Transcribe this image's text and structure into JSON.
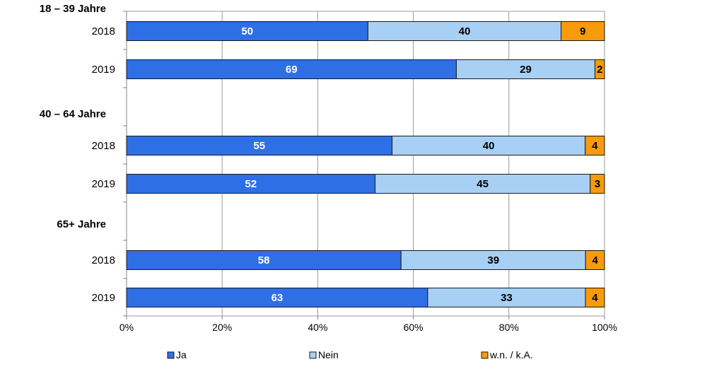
{
  "chart_data": {
    "type": "bar",
    "orientation": "horizontal",
    "stacked": true,
    "xlim": [
      0,
      100
    ],
    "x_ticks": [
      "0%",
      "20%",
      "40%",
      "60%",
      "80%",
      "100%"
    ],
    "grid": "vertical",
    "legend_position": "bottom",
    "groups": [
      {
        "label": "18 – 39 Jahre",
        "rows": [
          {
            "year": "2018",
            "values": [
              50,
              40,
              9
            ]
          },
          {
            "year": "2019",
            "values": [
              69,
              29,
              2
            ]
          }
        ]
      },
      {
        "label": "40 – 64 Jahre",
        "rows": [
          {
            "year": "2018",
            "values": [
              55,
              40,
              4
            ]
          },
          {
            "year": "2019",
            "values": [
              52,
              45,
              3
            ]
          }
        ]
      },
      {
        "label": "65+ Jahre",
        "rows": [
          {
            "year": "2018",
            "values": [
              58,
              39,
              4
            ]
          },
          {
            "year": "2019",
            "values": [
              63,
              33,
              4
            ]
          }
        ]
      }
    ],
    "series": [
      {
        "name": "Ja",
        "color": "#2f6fe6",
        "label_color": "#ffffff"
      },
      {
        "name": "Nein",
        "color": "#a8d0f5",
        "label_color": "#000000"
      },
      {
        "name": "w.n. / k.A.",
        "color": "#f79a0b",
        "label_color": "#000000"
      }
    ]
  }
}
